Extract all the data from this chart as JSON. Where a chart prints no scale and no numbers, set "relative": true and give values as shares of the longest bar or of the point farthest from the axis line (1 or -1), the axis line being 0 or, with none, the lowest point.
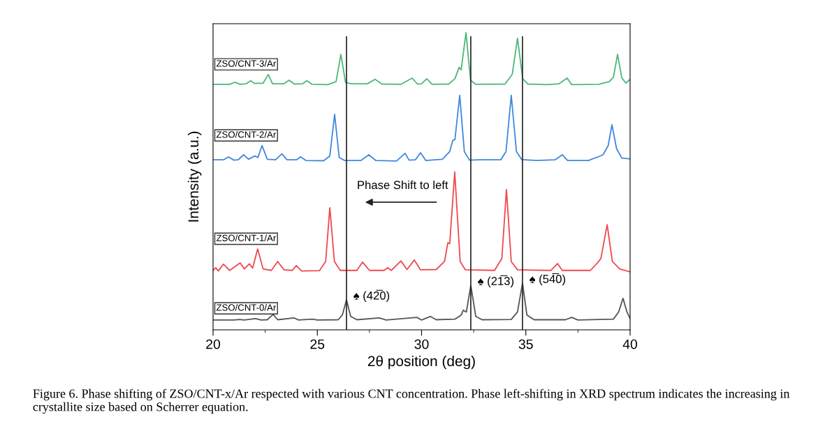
{
  "chart_data": {
    "type": "line",
    "relative": true,
    "xlabel": "2θ position (deg)",
    "ylabel": "Intensity (a.u.)",
    "xlim": [
      20,
      40
    ],
    "xticks": [
      20,
      25,
      30,
      35,
      40
    ],
    "grid": false,
    "legend": false,
    "marker": "none",
    "line_style": "solid",
    "series": [
      {
        "name": "ZSO/CNT-0/Ar",
        "color": "#555555",
        "x": [
          20.0,
          21.0,
          21.27,
          21.5,
          22.04,
          22.3,
          22.6,
          22.88,
          23.1,
          23.89,
          24.1,
          24.76,
          25.0,
          26.0,
          26.2,
          26.4,
          26.6,
          26.9,
          27.97,
          28.3,
          29.78,
          30.0,
          30.42,
          30.7,
          31.6,
          31.9,
          32.0,
          32.15,
          32.36,
          32.6,
          32.9,
          34.3,
          34.6,
          34.84,
          35.05,
          35.4,
          36.9,
          37.2,
          37.5,
          39.2,
          39.45,
          39.66,
          39.85,
          40.0
        ],
        "values": [
          0.033,
          0.033,
          0.035,
          0.033,
          0.038,
          0.033,
          0.034,
          0.052,
          0.034,
          0.04,
          0.033,
          0.036,
          0.033,
          0.034,
          0.05,
          0.101,
          0.045,
          0.034,
          0.04,
          0.033,
          0.042,
          0.033,
          0.045,
          0.034,
          0.036,
          0.05,
          0.066,
          0.06,
          0.15,
          0.045,
          0.034,
          0.035,
          0.06,
          0.157,
          0.05,
          0.034,
          0.034,
          0.042,
          0.033,
          0.036,
          0.06,
          0.106,
          0.06,
          0.038
        ]
      },
      {
        "name": "ZSO/CNT-1/Ar",
        "color": "#f0484e",
        "x": [
          20.0,
          20.13,
          20.25,
          20.5,
          20.8,
          21.3,
          21.5,
          21.74,
          21.9,
          22.14,
          22.4,
          22.8,
          23.1,
          23.4,
          23.8,
          23.99,
          24.25,
          25.1,
          25.4,
          25.6,
          25.82,
          26.1,
          26.9,
          27.17,
          27.5,
          28.2,
          28.38,
          28.55,
          29.01,
          29.3,
          29.65,
          29.95,
          30.7,
          31.1,
          31.26,
          31.35,
          31.59,
          31.85,
          32.1,
          33.5,
          33.85,
          34.07,
          34.3,
          34.6,
          36.2,
          36.52,
          36.75,
          38.1,
          38.43,
          38.6,
          38.9,
          39.15,
          39.5,
          40.0
        ],
        "values": [
          0.2,
          0.209,
          0.198,
          0.221,
          0.2,
          0.225,
          0.205,
          0.222,
          0.208,
          0.272,
          0.205,
          0.2,
          0.23,
          0.202,
          0.2,
          0.216,
          0.198,
          0.199,
          0.23,
          0.411,
          0.23,
          0.2,
          0.2,
          0.228,
          0.2,
          0.2,
          0.209,
          0.2,
          0.232,
          0.203,
          0.235,
          0.202,
          0.203,
          0.23,
          0.293,
          0.29,
          0.531,
          0.23,
          0.202,
          0.2,
          0.24,
          0.472,
          0.23,
          0.202,
          0.2,
          0.223,
          0.2,
          0.2,
          0.225,
          0.24,
          0.354,
          0.23,
          0.205,
          0.195
        ]
      },
      {
        "name": "ZSO/CNT-2/Ar",
        "color": "#3f86e0",
        "x": [
          20.0,
          20.5,
          20.74,
          21.0,
          21.2,
          21.47,
          21.7,
          22.0,
          22.15,
          22.35,
          22.6,
          23.0,
          23.3,
          23.55,
          24.0,
          24.2,
          24.45,
          25.3,
          25.6,
          25.83,
          26.05,
          26.3,
          27.1,
          27.47,
          27.8,
          28.8,
          29.21,
          29.4,
          29.7,
          29.95,
          30.2,
          31.0,
          31.35,
          31.5,
          31.6,
          31.83,
          32.05,
          32.3,
          32.8,
          33.8,
          34.05,
          34.3,
          34.55,
          34.8,
          35.5,
          36.4,
          36.75,
          37.0,
          38.0,
          38.5,
          38.7,
          38.95,
          39.13,
          39.35,
          39.6,
          40.0
        ],
        "values": [
          0.572,
          0.572,
          0.582,
          0.571,
          0.572,
          0.589,
          0.574,
          0.585,
          0.58,
          0.62,
          0.574,
          0.572,
          0.592,
          0.572,
          0.572,
          0.582,
          0.57,
          0.569,
          0.585,
          0.725,
          0.58,
          0.57,
          0.57,
          0.589,
          0.57,
          0.568,
          0.594,
          0.571,
          0.572,
          0.596,
          0.57,
          0.574,
          0.6,
          0.638,
          0.64,
          0.789,
          0.6,
          0.571,
          0.572,
          0.572,
          0.6,
          0.789,
          0.6,
          0.573,
          0.57,
          0.572,
          0.589,
          0.57,
          0.57,
          0.583,
          0.589,
          0.62,
          0.69,
          0.61,
          0.578,
          0.575
        ]
      },
      {
        "name": "ZSO/CNT-3/Ar",
        "color": "#4cb87a",
        "x": [
          20.0,
          20.8,
          21.04,
          21.3,
          21.6,
          21.8,
          22.0,
          22.4,
          22.65,
          22.85,
          23.4,
          23.65,
          23.9,
          24.3,
          24.5,
          24.75,
          25.5,
          25.9,
          26.13,
          26.35,
          26.6,
          27.4,
          27.77,
          28.1,
          29.0,
          29.55,
          29.8,
          30.0,
          30.25,
          30.5,
          31.3,
          31.6,
          31.8,
          31.9,
          32.13,
          32.35,
          32.6,
          34.0,
          34.35,
          34.6,
          34.85,
          35.1,
          36.0,
          36.6,
          36.98,
          37.2,
          38.5,
          39.0,
          39.2,
          39.4,
          39.6,
          39.8,
          40.0
        ],
        "values": [
          0.826,
          0.826,
          0.833,
          0.826,
          0.828,
          0.838,
          0.829,
          0.83,
          0.859,
          0.828,
          0.828,
          0.84,
          0.827,
          0.828,
          0.838,
          0.826,
          0.825,
          0.835,
          0.927,
          0.833,
          0.828,
          0.828,
          0.843,
          0.827,
          0.826,
          0.847,
          0.827,
          0.828,
          0.845,
          0.826,
          0.827,
          0.845,
          0.883,
          0.875,
          1.0,
          0.84,
          0.826,
          0.827,
          0.86,
          0.981,
          0.845,
          0.827,
          0.825,
          0.828,
          0.847,
          0.825,
          0.826,
          0.835,
          0.85,
          0.927,
          0.848,
          0.83,
          0.843
        ]
      }
    ],
    "ref_lines": [
      {
        "axis": "x",
        "value": 26.4,
        "color": "#222222"
      },
      {
        "axis": "x",
        "value": 32.36,
        "color": "#222222"
      },
      {
        "axis": "x",
        "value": 34.84,
        "color": "#222222"
      }
    ],
    "annotations": [
      "Phase Shift to left",
      {
        "text": "♠ (42̅0)",
        "x": 26.4,
        "y": 0.101
      },
      {
        "text": "♠ (21̅3)",
        "x": 32.36,
        "y": 0.15
      },
      {
        "text": "♠ (54̅0)",
        "x": 34.84,
        "y": 0.157
      },
      "Figure 6. Phase shifting of ZSO/CNT-x/Ar respected with various CNT concentration. Phase left-shifting in XRD spectrum indicates the increasing in crystallite size based on Scherrer equation."
    ]
  }
}
